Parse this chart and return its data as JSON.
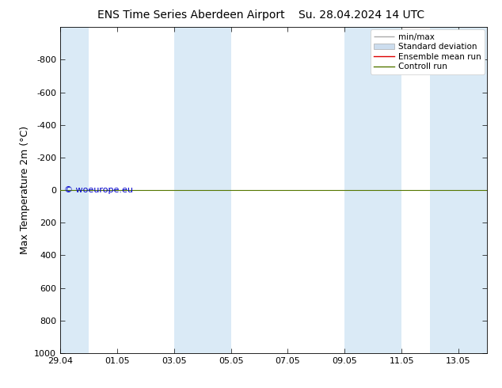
{
  "title": "ENS Time Series Aberdeen Airport",
  "title2": "Su. 28.04.2024 14 UTC",
  "ylabel": "Max Temperature 2m (°C)",
  "ylim_top": -1000,
  "ylim_bottom": 1000,
  "yticks": [
    -800,
    -600,
    -400,
    -200,
    0,
    200,
    400,
    600,
    800,
    1000
  ],
  "x_dates": [
    "29.04",
    "01.05",
    "03.05",
    "05.05",
    "07.05",
    "09.05",
    "11.05",
    "13.05"
  ],
  "x_positions": [
    0,
    2,
    4,
    6,
    8,
    10,
    12,
    14
  ],
  "xlim": [
    0,
    15
  ],
  "shaded_bands": [
    [
      0,
      1
    ],
    [
      4,
      6
    ],
    [
      10,
      12
    ],
    [
      13,
      15
    ]
  ],
  "band_color": "#daeaf6",
  "bg_color": "#ffffff",
  "control_run_color": "#557700",
  "ensemble_mean_color": "#dd0000",
  "watermark": "© woeurope.eu",
  "watermark_color": "#0000cc",
  "legend_labels": [
    "min/max",
    "Standard deviation",
    "Ensemble mean run",
    "Controll run"
  ],
  "legend_colors": [
    "#aaaaaa",
    "#ccddee",
    "#dd0000",
    "#557700"
  ],
  "title_fontsize": 10,
  "ylabel_fontsize": 9,
  "tick_fontsize": 8,
  "legend_fontsize": 7.5,
  "watermark_fontsize": 8
}
